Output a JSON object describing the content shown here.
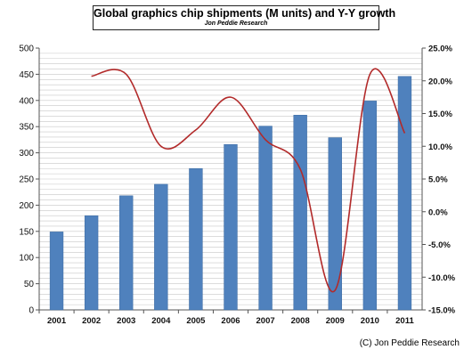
{
  "chart_data": {
    "type": "bar",
    "title": "Global graphics chip shipments (M units) and Y-Y growth",
    "subtitle": "Jon Peddie Research",
    "categories": [
      "2001",
      "2002",
      "2003",
      "2004",
      "2005",
      "2006",
      "2007",
      "2008",
      "2009",
      "2010",
      "2011"
    ],
    "series": [
      {
        "name": "",
        "type": "bar",
        "axis": "left",
        "values": [
          149,
          180,
          218,
          240,
          270,
          316,
          351,
          372,
          329,
          399,
          446
        ]
      },
      {
        "name": "",
        "type": "line",
        "axis": "right",
        "values": [
          null,
          0.207,
          0.21,
          0.1,
          0.125,
          0.175,
          0.11,
          0.065,
          -0.12,
          0.21,
          0.12
        ]
      }
    ],
    "ylim": [
      0,
      500
    ],
    "yticks": [
      "0",
      "50",
      "100",
      "150",
      "200",
      "250",
      "300",
      "350",
      "400",
      "450",
      "500"
    ],
    "y2lim": [
      -0.15,
      0.25
    ],
    "y2ticks": [
      "-15.0%",
      "-10.0%",
      "-5.0%",
      "0.0%",
      "5.0%",
      "10.0%",
      "15.0%",
      "20.0%",
      "25.0%"
    ],
    "grid": true,
    "colors": {
      "bar": "#4f81bd",
      "line": "#b22a2a",
      "grid": "#c8c8c8"
    }
  },
  "credit": "(C) Jon Peddie Research"
}
